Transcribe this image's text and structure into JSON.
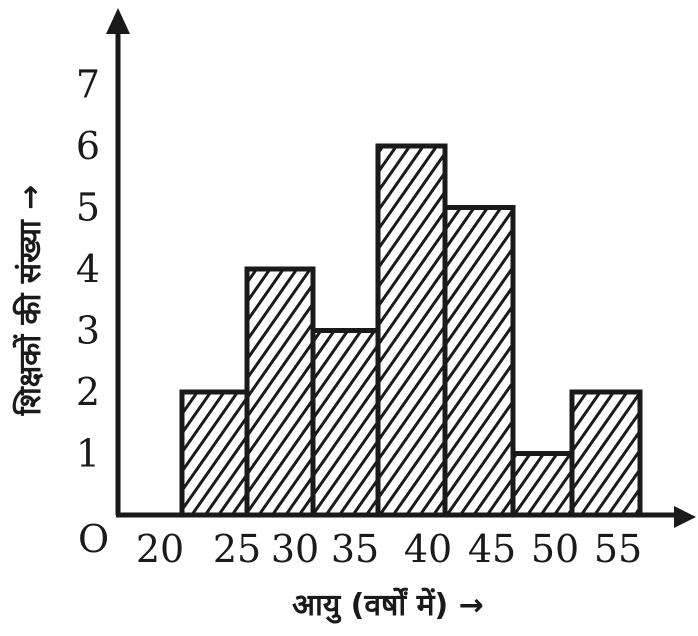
{
  "chart_data": {
    "type": "bar",
    "style": "histogram",
    "x_edges": [
      20,
      25,
      30,
      35,
      40,
      45,
      50,
      55
    ],
    "categories": [
      "20-25",
      "25-30",
      "30-35",
      "35-40",
      "40-45",
      "45-50",
      "50-55"
    ],
    "values": [
      2,
      4,
      3,
      6,
      5,
      1,
      2
    ],
    "xlabel": "आयु (वर्षों में) →",
    "ylabel": "शिक्षकों की संख्या →",
    "origin_label": "O",
    "x_ticks": [
      "20",
      "25",
      "30",
      "35",
      "40",
      "45",
      "50",
      "55"
    ],
    "y_ticks": [
      "1",
      "2",
      "3",
      "4",
      "5",
      "6",
      "7"
    ],
    "ylim": [
      0,
      7
    ],
    "grid": false,
    "fill": "diagonal hatching",
    "bar_color": "#1a1a1a"
  }
}
